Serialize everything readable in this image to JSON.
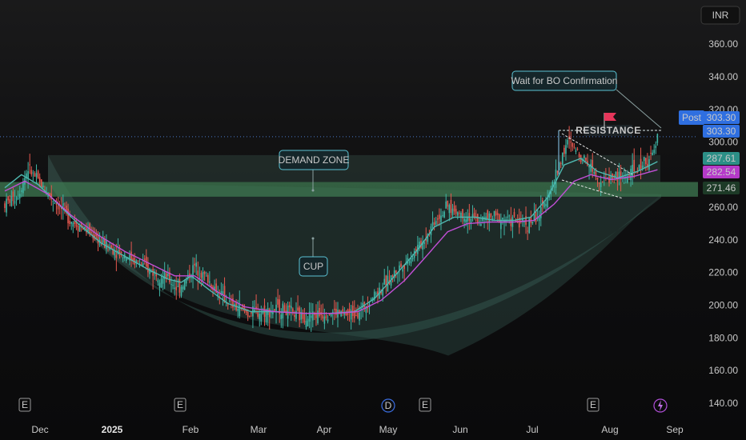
{
  "currency": "INR",
  "colors": {
    "background": "#0e0e0f",
    "bull": "#3fb6a6",
    "bear": "#e6584f",
    "ema_fast": "#4fb8b0",
    "ema_slow": "#c14fd6",
    "zone": "#3f7a52",
    "annotation_border": "#5bc3d4",
    "price_blue": "#2f6fe0",
    "price_teal": "#2c8f86",
    "price_magenta": "#b53ac8",
    "flag": "#e6365a"
  },
  "annotations": {
    "demand_zone": "DEMAND ZONE",
    "cup": "CUP",
    "resistance": "RESISTANCE",
    "wait": "Wait for BO Confirmation"
  },
  "price_badges": {
    "post_label": "Post",
    "post_value": "303.30",
    "last_value": "303.30",
    "ema_fast_value": "287.61",
    "ema_slow_value": "282.54",
    "zone_value": "271.46"
  },
  "event_markers": [
    "E",
    "E",
    "D",
    "E",
    "E",
    "lightning-icon"
  ],
  "chart_data": {
    "type": "candlestick",
    "title": "",
    "y_axis": {
      "unit": "INR",
      "ticks": [
        360,
        340,
        320,
        300,
        280,
        260,
        240,
        220,
        200,
        180,
        160,
        140
      ],
      "tick_labels": [
        "360.00",
        "340.00",
        "320.00",
        "300.00",
        "280.00",
        "260.00",
        "240.00",
        "220.00",
        "200.00",
        "180.00",
        "160.00",
        "140.00"
      ],
      "ylim": [
        136,
        365
      ]
    },
    "x_axis": {
      "tick_labels": [
        "Dec",
        "2025",
        "Feb",
        "Mar",
        "Apr",
        "May",
        "Jun",
        "Jul",
        "Aug",
        "Sep"
      ],
      "bold_labels": [
        "2025"
      ]
    },
    "price_path": [
      [
        0,
        262
      ],
      [
        8,
        268
      ],
      [
        14,
        284
      ],
      [
        20,
        276
      ],
      [
        28,
        266
      ],
      [
        40,
        252
      ],
      [
        52,
        244
      ],
      [
        62,
        236
      ],
      [
        74,
        230
      ],
      [
        86,
        222
      ],
      [
        98,
        216
      ],
      [
        104,
        210
      ],
      [
        108,
        214
      ],
      [
        114,
        224
      ],
      [
        120,
        218
      ],
      [
        128,
        208
      ],
      [
        136,
        200
      ],
      [
        146,
        195
      ],
      [
        156,
        196
      ],
      [
        166,
        198
      ],
      [
        176,
        193
      ],
      [
        186,
        194
      ],
      [
        196,
        196
      ],
      [
        206,
        194
      ],
      [
        214,
        197
      ],
      [
        220,
        205
      ],
      [
        228,
        212
      ],
      [
        236,
        222
      ],
      [
        244,
        230
      ],
      [
        252,
        240
      ],
      [
        258,
        252
      ],
      [
        266,
        260
      ],
      [
        274,
        256
      ],
      [
        284,
        252
      ],
      [
        294,
        254
      ],
      [
        304,
        252
      ],
      [
        314,
        250
      ],
      [
        322,
        256
      ],
      [
        326,
        268
      ],
      [
        330,
        276
      ],
      [
        334,
        290
      ],
      [
        338,
        300
      ],
      [
        344,
        294
      ],
      [
        350,
        288
      ],
      [
        354,
        282
      ],
      [
        358,
        276
      ],
      [
        362,
        278
      ],
      [
        366,
        279
      ],
      [
        372,
        278
      ],
      [
        376,
        281
      ],
      [
        380,
        283
      ],
      [
        384,
        288
      ],
      [
        388,
        290
      ],
      [
        391,
        297
      ],
      [
        392,
        304
      ]
    ],
    "ema_fast": [
      [
        0,
        272
      ],
      [
        10,
        280
      ],
      [
        20,
        274
      ],
      [
        30,
        264
      ],
      [
        44,
        250
      ],
      [
        58,
        238
      ],
      [
        72,
        230
      ],
      [
        86,
        222
      ],
      [
        98,
        216
      ],
      [
        106,
        214
      ],
      [
        112,
        218
      ],
      [
        122,
        210
      ],
      [
        134,
        201
      ],
      [
        148,
        196
      ],
      [
        164,
        196
      ],
      [
        180,
        195
      ],
      [
        196,
        195
      ],
      [
        210,
        196
      ],
      [
        222,
        204
      ],
      [
        236,
        220
      ],
      [
        248,
        234
      ],
      [
        258,
        248
      ],
      [
        270,
        254
      ],
      [
        282,
        254
      ],
      [
        294,
        252
      ],
      [
        306,
        252
      ],
      [
        316,
        254
      ],
      [
        326,
        266
      ],
      [
        336,
        286
      ],
      [
        346,
        290
      ],
      [
        356,
        282
      ],
      [
        368,
        278
      ],
      [
        380,
        282
      ],
      [
        392,
        288
      ]
    ],
    "ema_slow": [
      [
        0,
        270
      ],
      [
        12,
        276
      ],
      [
        26,
        268
      ],
      [
        40,
        255
      ],
      [
        56,
        243
      ],
      [
        72,
        233
      ],
      [
        88,
        225
      ],
      [
        102,
        218
      ],
      [
        114,
        218
      ],
      [
        128,
        208
      ],
      [
        144,
        199
      ],
      [
        162,
        196
      ],
      [
        180,
        195
      ],
      [
        198,
        195
      ],
      [
        212,
        196
      ],
      [
        226,
        203
      ],
      [
        240,
        215
      ],
      [
        254,
        231
      ],
      [
        266,
        245
      ],
      [
        278,
        250
      ],
      [
        292,
        251
      ],
      [
        306,
        251
      ],
      [
        318,
        252
      ],
      [
        330,
        262
      ],
      [
        342,
        276
      ],
      [
        352,
        280
      ],
      [
        364,
        277
      ],
      [
        378,
        279
      ],
      [
        392,
        283
      ]
    ],
    "demand_zone": {
      "top": 275.5,
      "bottom": 266.5,
      "mid": 271.46
    },
    "supply_band": {
      "top": 292,
      "bottom": 275.5
    },
    "resistance_level": 303.3,
    "cup_bottom": 174
  }
}
